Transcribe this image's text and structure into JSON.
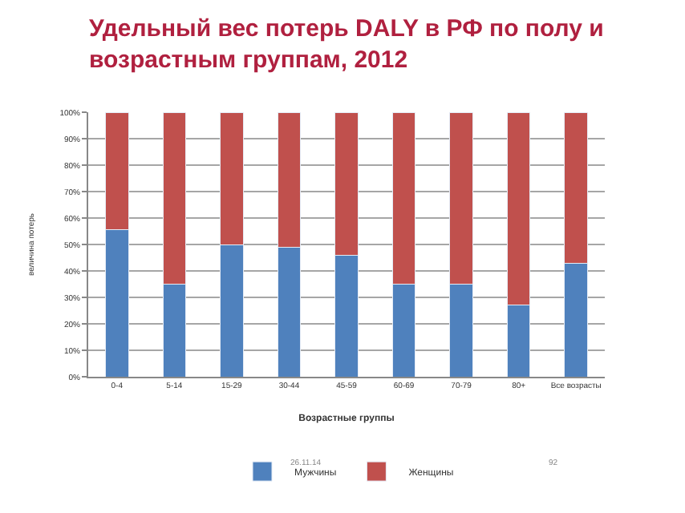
{
  "chart_data": {
    "type": "bar",
    "stacked": true,
    "title": "Удельный вес потерь DALY в РФ по полу и возрастным группам, 2012",
    "xlabel": "Возрастные группы",
    "ylabel": "величина потерь",
    "categories": [
      "0-4",
      "5-14",
      "15-29",
      "30-44",
      "45-59",
      "60-69",
      "70-79",
      "80+",
      "Все возрасты"
    ],
    "series": [
      {
        "name": "Мужчины",
        "color": "#4f81bd",
        "values": [
          55.5,
          35,
          50,
          49,
          46,
          35,
          35,
          27,
          43
        ]
      },
      {
        "name": "Женщины",
        "color": "#c0504d",
        "values": [
          44.5,
          65,
          50,
          51,
          54,
          65,
          65,
          73,
          57
        ]
      }
    ],
    "ylim": [
      0,
      100
    ],
    "yticks": [
      {
        "value": 0,
        "label": "0%"
      },
      {
        "value": 10,
        "label": "10%"
      },
      {
        "value": 20,
        "label": "20%"
      },
      {
        "value": 30,
        "label": "30%"
      },
      {
        "value": 40,
        "label": "40%"
      },
      {
        "value": 50,
        "label": "50%"
      },
      {
        "value": 60,
        "label": "60%"
      },
      {
        "value": 70,
        "label": "70%"
      },
      {
        "value": 80,
        "label": "80%"
      },
      {
        "value": 90,
        "label": "90%"
      },
      {
        "value": 100,
        "label": "100%"
      }
    ],
    "grid": "y",
    "legend": "bottom",
    "annotations": [
      "26.11.14",
      "92"
    ]
  }
}
